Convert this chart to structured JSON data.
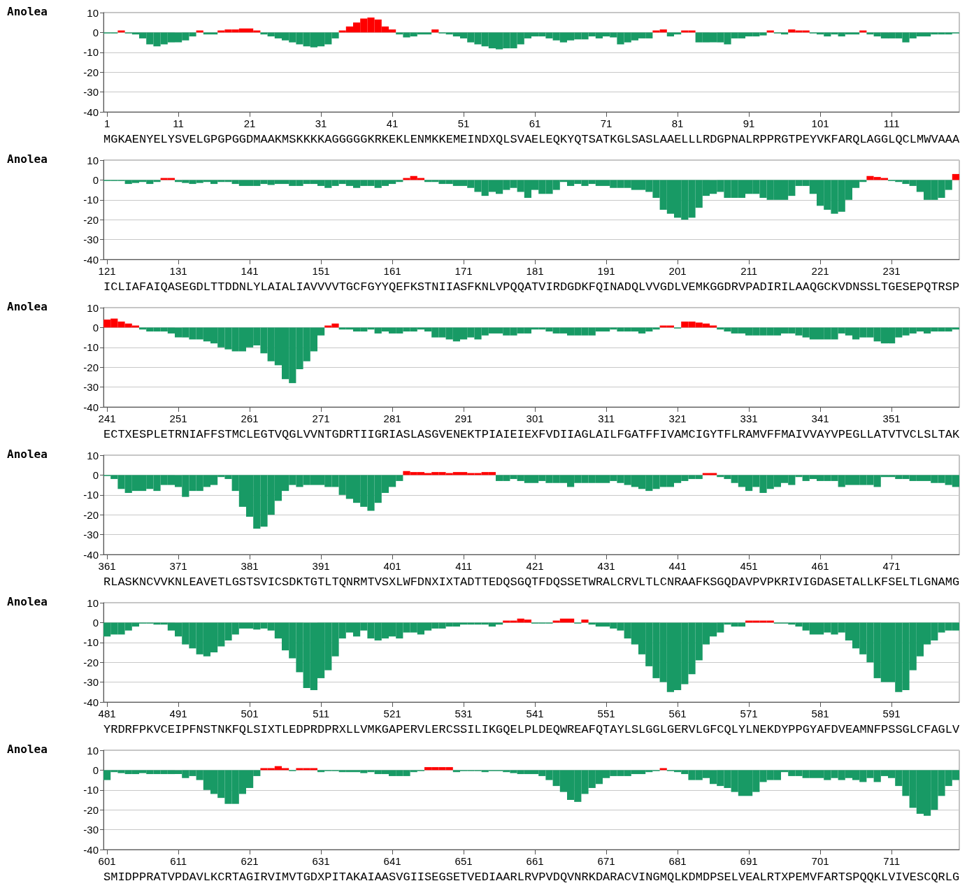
{
  "chart_data": [
    {
      "type": "bar",
      "ylabel": "Anolea",
      "xlim": [
        0.5,
        120.5
      ],
      "xticks": [
        1,
        11,
        21,
        31,
        41,
        51,
        61,
        71,
        81,
        91,
        101,
        111
      ],
      "ylim": [
        -40,
        10
      ],
      "yticks": [
        -40,
        -30,
        -20,
        -10,
        0,
        10
      ],
      "grid": "y",
      "annotations": [
        "MGKAENYELYSVELGPGPGGDMAAKMSKKKKAGGGGGKRKEKLENMKKEMEINDXQLSVAELEQKYQTSATKGLSASLAAELLLRDGPNALRPPRGTPEYVKFARQLAGGLQCLMWVAAA"
      ],
      "series": [
        {
          "color": "#ff0000",
          "x": [
            3,
            14,
            17,
            18,
            19,
            20,
            21,
            22,
            34,
            35,
            36,
            37,
            38,
            39,
            40,
            41,
            47,
            78,
            79,
            82,
            83,
            94,
            97,
            98,
            99,
            107
          ],
          "values": [
            1,
            1,
            1,
            1.5,
            1.5,
            2,
            2,
            1,
            1,
            3,
            5,
            7,
            7.5,
            6.5,
            3,
            1.5,
            1.5,
            1,
            1.5,
            1,
            1,
            1,
            1.5,
            1,
            1,
            1
          ]
        },
        {
          "color": "#189a65",
          "x": [
            1,
            2,
            4,
            5,
            6,
            7,
            8,
            9,
            10,
            11,
            12,
            13,
            15,
            16,
            23,
            24,
            25,
            26,
            27,
            28,
            29,
            30,
            31,
            32,
            33,
            42,
            43,
            44,
            45,
            46,
            48,
            49,
            50,
            51,
            52,
            53,
            54,
            55,
            56,
            57,
            58,
            59,
            60,
            61,
            62,
            63,
            64,
            65,
            66,
            67,
            68,
            69,
            70,
            71,
            72,
            73,
            74,
            75,
            76,
            77,
            80,
            81,
            84,
            85,
            86,
            87,
            88,
            89,
            90,
            91,
            92,
            93,
            95,
            96,
            100,
            101,
            102,
            103,
            104,
            105,
            106,
            108,
            109,
            110,
            111,
            112,
            113,
            114,
            115,
            116,
            117,
            118,
            119,
            120
          ],
          "values": [
            -0.5,
            -0.5,
            -0.5,
            -1,
            -3,
            -6,
            -7,
            -6,
            -5,
            -5,
            -4,
            -2,
            -1,
            -1,
            -1,
            -2,
            -3,
            -4,
            -5,
            -6,
            -7,
            -7.5,
            -7,
            -6,
            -3,
            -1,
            -2.5,
            -2,
            -1,
            -1,
            -0.5,
            -1,
            -2,
            -3,
            -5,
            -6,
            -7,
            -8,
            -8.5,
            -8,
            -8,
            -6,
            -3,
            -2,
            -2,
            -3,
            -4,
            -5,
            -4,
            -3.5,
            -3.5,
            -2,
            -3,
            -2,
            -2.5,
            -6,
            -5,
            -4,
            -3,
            -3,
            -2,
            -1,
            -5,
            -5,
            -5,
            -5,
            -6,
            -3,
            -3,
            -2,
            -2,
            -1.5,
            -0.5,
            -1,
            -0.5,
            -1,
            -2,
            -1,
            -2,
            -1,
            -1,
            -1,
            -2,
            -3,
            -3,
            -3,
            -5,
            -3,
            -2,
            -2,
            -1,
            -1,
            -1,
            -0.5
          ]
        }
      ]
    },
    {
      "type": "bar",
      "ylabel": "Anolea",
      "xlim": [
        120.5,
        240.5
      ],
      "xticks": [
        121,
        131,
        141,
        151,
        161,
        171,
        181,
        191,
        201,
        211,
        221,
        231
      ],
      "ylim": [
        -40,
        10
      ],
      "yticks": [
        -40,
        -30,
        -20,
        -10,
        0,
        10
      ],
      "grid": "y",
      "annotations": [
        "ICLIAFAIQASEGDLTTDDNLYLAIALIAVVVVTGCFGYYQEFKSTNIIASFKNLVPQQATVIRDGDKFQINADQLVVGDLVEMKGGDRVPADIRILAAQGCKVDNSSLTGESEPQTRSP"
      ],
      "series": [
        {
          "color": "#ff0000",
          "x": [
            129,
            130,
            163,
            164,
            165,
            228,
            229,
            230,
            240
          ],
          "values": [
            1,
            1,
            1,
            2,
            1,
            2,
            1.5,
            1,
            3
          ]
        },
        {
          "color": "#189a65",
          "x": [
            121,
            122,
            123,
            124,
            125,
            126,
            127,
            128,
            131,
            132,
            133,
            134,
            135,
            136,
            137,
            138,
            139,
            140,
            141,
            142,
            143,
            144,
            145,
            146,
            147,
            148,
            149,
            150,
            151,
            152,
            153,
            154,
            155,
            156,
            157,
            158,
            159,
            160,
            161,
            162,
            166,
            167,
            168,
            169,
            170,
            171,
            172,
            173,
            174,
            175,
            176,
            177,
            178,
            179,
            180,
            181,
            182,
            183,
            184,
            185,
            186,
            187,
            188,
            189,
            190,
            191,
            192,
            193,
            194,
            195,
            196,
            197,
            198,
            199,
            200,
            201,
            202,
            203,
            204,
            205,
            206,
            207,
            208,
            209,
            210,
            211,
            212,
            213,
            214,
            215,
            216,
            217,
            218,
            219,
            220,
            221,
            222,
            223,
            224,
            225,
            226,
            227,
            231,
            232,
            233,
            234,
            235,
            236,
            237,
            238,
            239
          ],
          "values": [
            -0.5,
            -0.5,
            -0.5,
            -2,
            -1.5,
            -1,
            -2,
            -1,
            -1,
            -1.5,
            -2,
            -1.5,
            -1,
            -2,
            -1,
            -1,
            -2,
            -3,
            -3,
            -3,
            -2,
            -2.5,
            -2,
            -2,
            -3,
            -3,
            -2,
            -2,
            -3,
            -4,
            -3,
            -2,
            -3,
            -4,
            -3,
            -3,
            -4,
            -3,
            -2,
            -1,
            -1,
            -1,
            -2,
            -2,
            -3,
            -3,
            -4,
            -6,
            -8,
            -6,
            -7,
            -5,
            -4,
            -6,
            -9,
            -5,
            -7,
            -7,
            -5,
            -1,
            -3,
            -2,
            -3,
            -2,
            -3,
            -3,
            -4,
            -4,
            -4,
            -5,
            -5,
            -6,
            -9,
            -15,
            -17,
            -19,
            -20,
            -19,
            -14,
            -8,
            -7,
            -6,
            -9,
            -9,
            -9,
            -7,
            -7,
            -9,
            -10,
            -10,
            -10,
            -8,
            -3,
            -3,
            -7,
            -13,
            -15,
            -17,
            -16,
            -10,
            -4,
            -1,
            -0.5,
            -1,
            -2,
            -3,
            -6,
            -10,
            -10,
            -9,
            -5
          ]
        }
      ]
    },
    {
      "type": "bar",
      "ylabel": "Anolea",
      "xlim": [
        240.5,
        360.5
      ],
      "xticks": [
        241,
        251,
        261,
        271,
        281,
        291,
        301,
        311,
        321,
        331,
        341,
        351
      ],
      "ylim": [
        -40,
        10
      ],
      "yticks": [
        -40,
        -30,
        -20,
        -10,
        0,
        10
      ],
      "grid": "y",
      "annotations": [
        "ECTXESPLETRNIAFFSTMCLEGTVQGLVVNTGDRTIIGRIASLASGVENEKTPIAIEIEXFVDIIAGLAILFGATFFIVAMCIGYTFLRAMVFFMAIVVAYVPEGLLATVTVCLSLTAK"
      ],
      "series": [
        {
          "color": "#ff0000",
          "x": [
            241,
            242,
            243,
            244,
            245,
            272,
            273,
            319,
            320,
            322,
            323,
            324,
            325,
            326
          ],
          "values": [
            4,
            4.5,
            3,
            2,
            1,
            1,
            2,
            1,
            1,
            3,
            3,
            2.5,
            2,
            1
          ]
        },
        {
          "color": "#189a65",
          "x": [
            246,
            247,
            248,
            249,
            250,
            251,
            252,
            253,
            254,
            255,
            256,
            257,
            258,
            259,
            260,
            261,
            262,
            263,
            264,
            265,
            266,
            267,
            268,
            269,
            270,
            271,
            274,
            275,
            276,
            277,
            278,
            279,
            280,
            281,
            282,
            283,
            284,
            285,
            286,
            287,
            288,
            289,
            290,
            291,
            292,
            293,
            294,
            295,
            296,
            297,
            298,
            299,
            300,
            301,
            302,
            303,
            304,
            305,
            306,
            307,
            308,
            309,
            310,
            311,
            312,
            313,
            314,
            315,
            316,
            317,
            318,
            321,
            327,
            328,
            329,
            330,
            331,
            332,
            333,
            334,
            335,
            336,
            337,
            338,
            339,
            340,
            341,
            342,
            343,
            344,
            345,
            346,
            347,
            348,
            349,
            350,
            351,
            352,
            353,
            354,
            355,
            356,
            357,
            358,
            359,
            360
          ],
          "values": [
            -1,
            -2,
            -2,
            -2,
            -3,
            -5,
            -5,
            -6,
            -6,
            -7,
            -8,
            -10,
            -11,
            -12,
            -12,
            -10,
            -9,
            -13,
            -17,
            -19,
            -26,
            -28,
            -21,
            -17,
            -12,
            -4,
            -1,
            -1,
            -2,
            -2,
            -1,
            -3,
            -2,
            -3,
            -3,
            -2,
            -2,
            -1,
            -2,
            -5,
            -5,
            -6,
            -7,
            -6,
            -5,
            -6,
            -4,
            -3,
            -3,
            -4,
            -4,
            -3,
            -3,
            -1,
            -1,
            -2,
            -3,
            -3,
            -4,
            -4,
            -4,
            -4,
            -2,
            -2,
            -1,
            -2,
            -2,
            -2,
            -3,
            -2,
            -1,
            -0.5,
            -1,
            -2,
            -3,
            -3,
            -4,
            -4,
            -4,
            -4,
            -4,
            -3,
            -3,
            -4,
            -5,
            -6,
            -6,
            -6,
            -6,
            -3,
            -4,
            -6,
            -5,
            -5,
            -7,
            -8,
            -8,
            -5,
            -4,
            -3,
            -2,
            -3,
            -2,
            -2,
            -2,
            -1
          ]
        }
      ]
    },
    {
      "type": "bar",
      "ylabel": "Anolea",
      "xlim": [
        360.5,
        480.5
      ],
      "xticks": [
        361,
        371,
        381,
        391,
        401,
        411,
        421,
        431,
        441,
        451,
        461,
        471
      ],
      "ylim": [
        -40,
        10
      ],
      "yticks": [
        -40,
        -30,
        -20,
        -10,
        0,
        10
      ],
      "grid": "y",
      "annotations": [
        "RLASKNCVVKNLEAVETLGSTSVICSDKTGTLTQNRMTVSXLWFDNXIXTADTTEDQSGQTFDQSSETWRALCRVLTLCNRAAFKSGQDAVPVPKRIVIGDASETALLKFSELTLGNAMG"
      ],
      "series": [
        {
          "color": "#ff0000",
          "x": [
            403,
            404,
            405,
            406,
            407,
            408,
            409,
            410,
            411,
            412,
            413,
            414,
            415,
            445,
            446
          ],
          "values": [
            2,
            1.5,
            1.5,
            1,
            1.5,
            1.5,
            1,
            1.5,
            1.5,
            1,
            1,
            1.5,
            1.5,
            1,
            1
          ]
        },
        {
          "color": "#189a65",
          "x": [
            361,
            362,
            363,
            364,
            365,
            366,
            367,
            368,
            369,
            370,
            371,
            372,
            373,
            374,
            375,
            376,
            377,
            378,
            379,
            380,
            381,
            382,
            383,
            384,
            385,
            386,
            387,
            388,
            389,
            390,
            391,
            392,
            393,
            394,
            395,
            396,
            397,
            398,
            399,
            400,
            401,
            402,
            416,
            417,
            418,
            419,
            420,
            421,
            422,
            423,
            424,
            425,
            426,
            427,
            428,
            429,
            430,
            431,
            432,
            433,
            434,
            435,
            436,
            437,
            438,
            439,
            440,
            441,
            442,
            443,
            444,
            447,
            448,
            449,
            450,
            451,
            452,
            453,
            454,
            455,
            456,
            457,
            458,
            459,
            460,
            461,
            462,
            463,
            464,
            465,
            466,
            467,
            468,
            469,
            470,
            471,
            472,
            473,
            474,
            475,
            476,
            477,
            478,
            479,
            480
          ],
          "values": [
            -0.5,
            -2,
            -7,
            -9,
            -8,
            -8,
            -7,
            -8,
            -5,
            -5,
            -6,
            -11,
            -8,
            -8,
            -6,
            -5,
            -1,
            -2,
            -8,
            -16,
            -21,
            -27,
            -26,
            -20,
            -13,
            -8,
            -5,
            -6,
            -5,
            -5,
            -5,
            -6,
            -6,
            -10,
            -12,
            -14,
            -16,
            -18,
            -14,
            -9,
            -6,
            -3,
            -3,
            -3,
            -2,
            -3,
            -4,
            -4,
            -3,
            -4,
            -4,
            -4,
            -6,
            -4,
            -4,
            -4,
            -4,
            -4,
            -3,
            -4,
            -5,
            -6,
            -7,
            -8,
            -7,
            -6,
            -6,
            -4,
            -3,
            -2,
            -2,
            -1,
            -2,
            -4,
            -6,
            -8,
            -6,
            -9,
            -7,
            -6,
            -4,
            -5,
            -1,
            -3,
            -2,
            -3,
            -3,
            -3,
            -6,
            -5,
            -5,
            -5,
            -5,
            -6,
            -1,
            -1,
            -2,
            -2,
            -3,
            -3,
            -3,
            -4,
            -4,
            -5,
            -6
          ]
        }
      ]
    },
    {
      "type": "bar",
      "ylabel": "Anolea",
      "xlim": [
        480.5,
        600.5
      ],
      "xticks": [
        481,
        491,
        501,
        511,
        521,
        531,
        541,
        551,
        561,
        571,
        581,
        591
      ],
      "ylim": [
        -40,
        10
      ],
      "yticks": [
        -40,
        -30,
        -20,
        -10,
        0,
        10
      ],
      "grid": "y",
      "annotations": [
        "YRDRFPKVCEIPFNSTNKFQLSIXTLEDPRDPRXLLVMKGAPERVLERCSSILIKGQELPLDEQWREAFQTAYLSLGGLGERVLGFCQLYLNEKDYPPGYAFDVEAMNFPSSGLCFAGLV"
      ],
      "series": [
        {
          "color": "#ff0000",
          "x": [
            537,
            538,
            539,
            540,
            544,
            545,
            546,
            548,
            571,
            572,
            573,
            574
          ],
          "values": [
            1,
            1,
            2,
            1.5,
            1,
            2,
            2,
            1.5,
            1,
            1,
            1,
            1
          ]
        },
        {
          "color": "#189a65",
          "x": [
            481,
            482,
            483,
            484,
            485,
            486,
            487,
            488,
            489,
            490,
            491,
            492,
            493,
            494,
            495,
            496,
            497,
            498,
            499,
            500,
            501,
            502,
            503,
            504,
            505,
            506,
            507,
            508,
            509,
            510,
            511,
            512,
            513,
            514,
            515,
            516,
            517,
            518,
            519,
            520,
            521,
            522,
            523,
            524,
            525,
            526,
            527,
            528,
            529,
            530,
            531,
            532,
            533,
            534,
            535,
            536,
            541,
            542,
            543,
            547,
            549,
            550,
            551,
            552,
            553,
            554,
            555,
            556,
            557,
            558,
            559,
            560,
            561,
            562,
            563,
            564,
            565,
            566,
            567,
            568,
            569,
            570,
            575,
            576,
            577,
            578,
            579,
            580,
            581,
            582,
            583,
            584,
            585,
            586,
            587,
            588,
            589,
            590,
            591,
            592,
            593,
            594,
            595,
            596,
            597,
            598,
            599,
            600
          ],
          "values": [
            -7,
            -6,
            -6,
            -4,
            -2,
            -0.5,
            -0.5,
            -1,
            -1,
            -4,
            -7,
            -11,
            -13,
            -16,
            -17,
            -15,
            -12,
            -9,
            -6,
            -3,
            -3,
            -3.5,
            -3,
            -4,
            -8,
            -14,
            -18,
            -25,
            -33,
            -34,
            -28,
            -24,
            -17,
            -8,
            -5,
            -7,
            -4,
            -8,
            -9,
            -8,
            -7,
            -8,
            -5,
            -5,
            -6,
            -4,
            -3,
            -3,
            -2,
            -2,
            -1,
            -1,
            -1,
            -1,
            -2,
            -1,
            -0.5,
            -0.5,
            -0.5,
            -0.5,
            -1,
            -2,
            -2,
            -3,
            -4,
            -8,
            -11,
            -16,
            -22,
            -28,
            -30,
            -35,
            -34,
            -31,
            -26,
            -19,
            -11,
            -7,
            -5,
            -1,
            -2,
            -2,
            -0.5,
            -0.5,
            -1,
            -2,
            -4,
            -6,
            -6,
            -5,
            -6,
            -5,
            -9,
            -13,
            -16,
            -20,
            -28,
            -30,
            -30,
            -35,
            -34,
            -24,
            -17,
            -11,
            -9,
            -5,
            -4,
            -4
          ]
        }
      ]
    },
    {
      "type": "bar",
      "ylabel": "Anolea",
      "xlim": [
        600.5,
        720.5
      ],
      "xticks": [
        601,
        611,
        621,
        631,
        641,
        651,
        661,
        671,
        681,
        691,
        701,
        711
      ],
      "ylim": [
        -40,
        10
      ],
      "yticks": [
        -40,
        -30,
        -20,
        -10,
        0,
        10
      ],
      "grid": "y",
      "annotations": [
        "SMIDPPRATVPDAVLKCRTAGIRVIMVTGDXPITAKAIAASVGIISEGSETVEDIAARLRVPVDQVNRKDARACVINGMQLKDMDPSELVEALRTXPEMVFARTSPQQKLVIVESCQRLG"
      ],
      "series": [
        {
          "color": "#ff0000",
          "x": [
            623,
            624,
            625,
            626,
            628,
            629,
            630,
            646,
            647,
            648,
            649,
            679
          ],
          "values": [
            1,
            1,
            2,
            1,
            1,
            1,
            1,
            1.5,
            1.5,
            1.5,
            1.5,
            1
          ]
        },
        {
          "color": "#189a65",
          "x": [
            601,
            602,
            603,
            604,
            605,
            606,
            607,
            608,
            609,
            610,
            611,
            612,
            613,
            614,
            615,
            616,
            617,
            618,
            619,
            620,
            621,
            622,
            627,
            631,
            632,
            633,
            634,
            635,
            636,
            637,
            638,
            639,
            640,
            641,
            642,
            643,
            644,
            645,
            650,
            651,
            652,
            653,
            654,
            655,
            656,
            657,
            658,
            659,
            660,
            661,
            662,
            663,
            664,
            665,
            666,
            667,
            668,
            669,
            670,
            671,
            672,
            673,
            674,
            675,
            676,
            677,
            678,
            680,
            681,
            682,
            683,
            684,
            685,
            686,
            687,
            688,
            689,
            690,
            691,
            692,
            693,
            694,
            695,
            696,
            697,
            698,
            699,
            700,
            701,
            702,
            703,
            704,
            705,
            706,
            707,
            708,
            709,
            710,
            711,
            712,
            713,
            714,
            715,
            716,
            717,
            718,
            719,
            720
          ],
          "values": [
            -5,
            -1,
            -1.5,
            -2,
            -2,
            -1.5,
            -2,
            -2,
            -2,
            -2,
            -2,
            -4,
            -3,
            -5,
            -10,
            -12,
            -14,
            -17,
            -17,
            -12,
            -9,
            -3,
            -0.5,
            -1,
            -0.5,
            -0.5,
            -1,
            -1,
            -1,
            -1.5,
            -1,
            -2,
            -2,
            -3,
            -3,
            -3,
            -1,
            -0.5,
            -1,
            -0.5,
            -0.5,
            -0.5,
            -1,
            -0.5,
            -0.5,
            -1,
            -1.5,
            -2,
            -2,
            -2,
            -3,
            -5,
            -8,
            -11,
            -15,
            -16,
            -12,
            -9,
            -7,
            -4,
            -3,
            -3,
            -3,
            -2,
            -2,
            -1,
            -0.5,
            -0.5,
            -1,
            -2,
            -5,
            -5,
            -4,
            -7,
            -8,
            -9,
            -11,
            -13,
            -13,
            -11,
            -6,
            -5,
            -5,
            -1,
            -3,
            -3,
            -4,
            -4,
            -4,
            -5,
            -4,
            -5,
            -4,
            -5,
            -6,
            -4,
            -6,
            -3,
            -4,
            -8,
            -13,
            -19,
            -22,
            -23,
            -20,
            -13,
            -8,
            -5
          ]
        }
      ]
    }
  ]
}
